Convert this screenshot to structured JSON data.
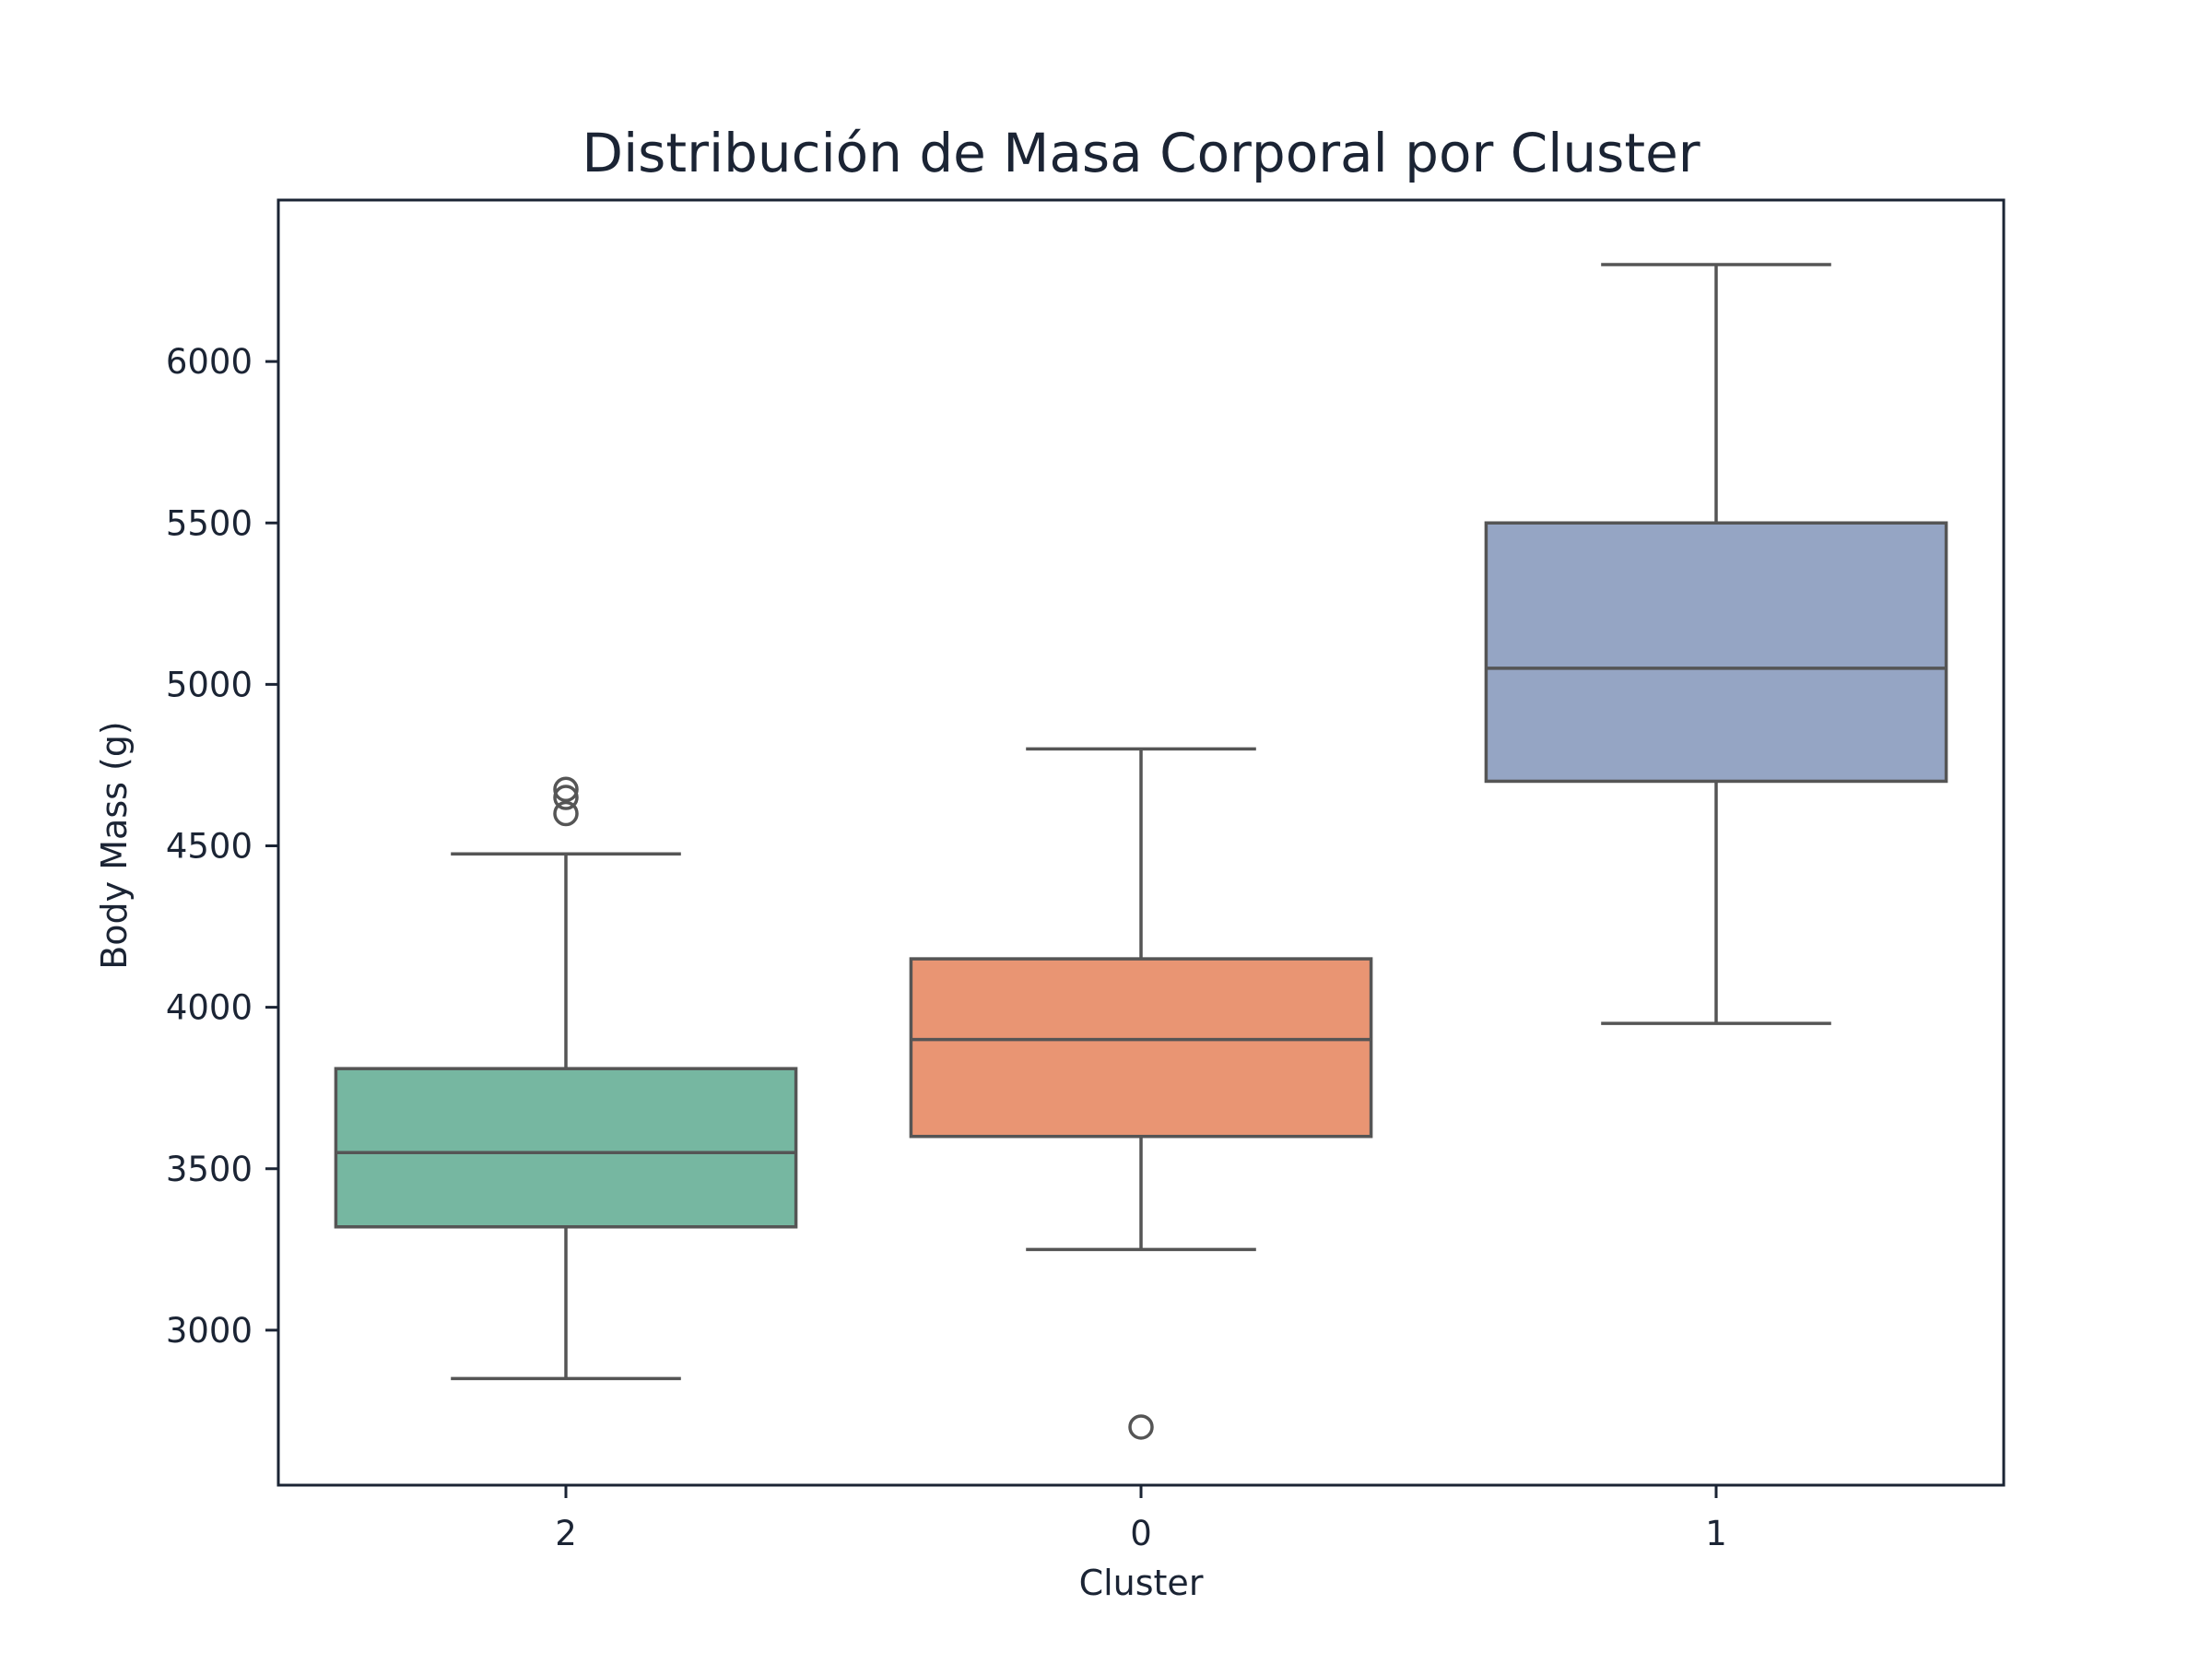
{
  "chart_data": {
    "type": "box",
    "title": "Distribución de Masa Corporal por Cluster",
    "xlabel": "Cluster",
    "ylabel": "Body Mass (g)",
    "ylim": [
      2520,
      6500
    ],
    "yticks": [
      3000,
      3500,
      4000,
      4500,
      5000,
      5500,
      6000
    ],
    "grid": false,
    "categories": [
      "2",
      "0",
      "1"
    ],
    "boxes": [
      {
        "category": "2",
        "color": "#76b7a1",
        "whisker_low": 2850,
        "q1": 3320,
        "median": 3550,
        "q3": 3810,
        "whisker_high": 4475,
        "outliers": [
          4600,
          4650,
          4675
        ]
      },
      {
        "category": "0",
        "color": "#e99573",
        "whisker_low": 3250,
        "q1": 3600,
        "median": 3900,
        "q3": 4150,
        "whisker_high": 4800,
        "outliers": [
          2700
        ]
      },
      {
        "category": "1",
        "color": "#95a5c4",
        "whisker_low": 3950,
        "q1": 4700,
        "median": 5050,
        "q3": 5500,
        "whisker_high": 6300,
        "outliers": []
      }
    ]
  }
}
